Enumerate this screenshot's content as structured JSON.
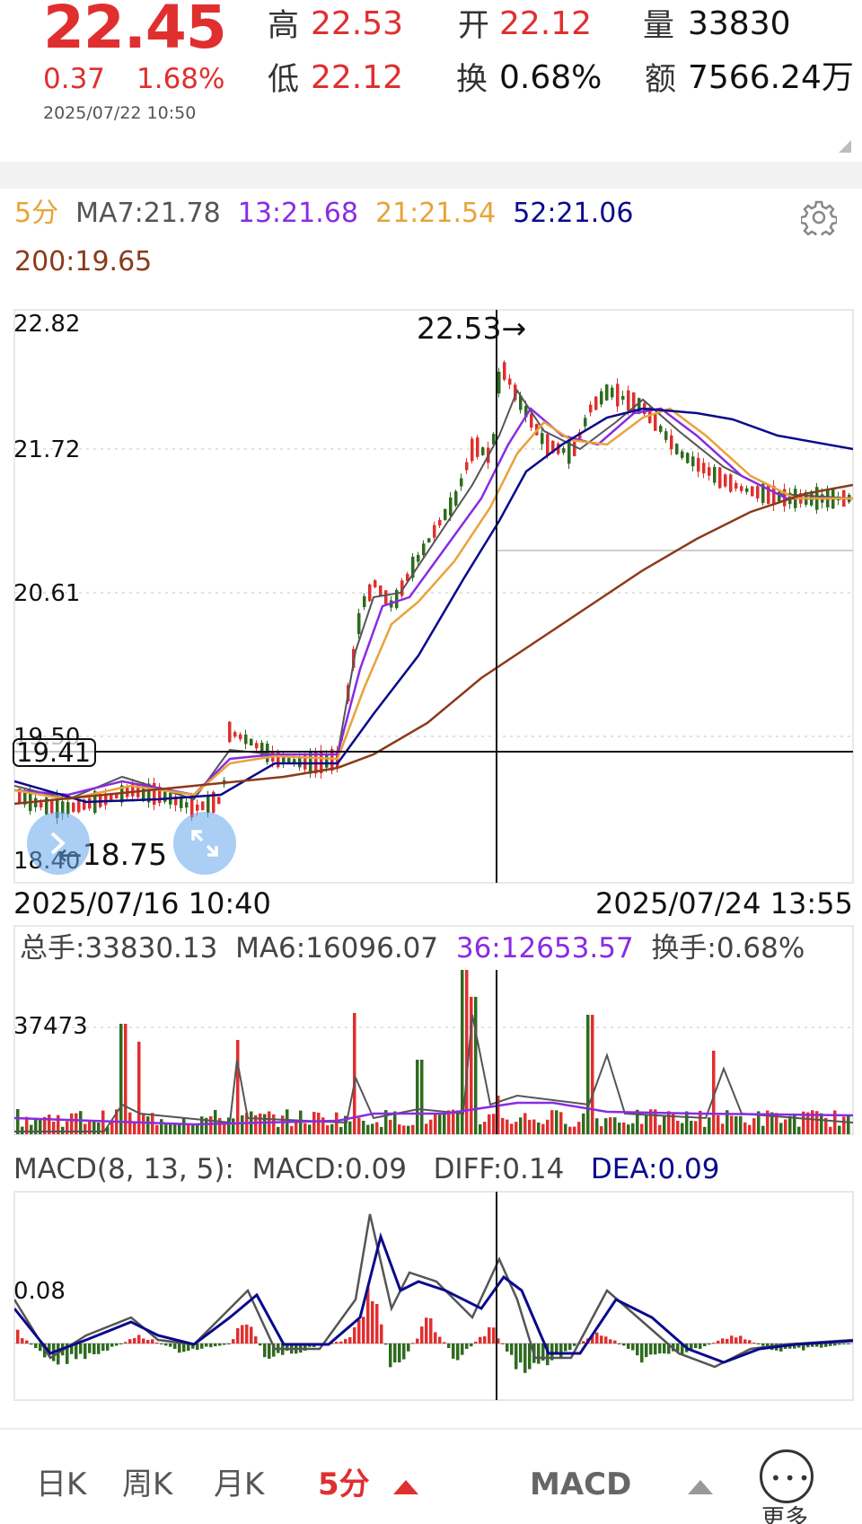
{
  "quote": {
    "price": "22.45",
    "change": "0.37",
    "change_pct": "1.68%",
    "time": "2025/07/22 10:50",
    "high_label": "高",
    "high": "22.53",
    "open_label": "开",
    "open": "22.12",
    "vol_label": "量",
    "vol": "33830",
    "low_label": "低",
    "low": "22.12",
    "turnover_label": "换",
    "turnover": "0.68%",
    "amount_label": "额",
    "amount": "7566.24万"
  },
  "ma": {
    "period": "5分",
    "ma7": "MA7:21.78",
    "ma13": "13:21.68",
    "ma21": "21:21.54",
    "ma52": "52:21.06",
    "ma200": "200:19.65"
  },
  "main_chart": {
    "y_labels": [
      "22.82",
      "21.72",
      "20.61",
      "19.50",
      "18.40"
    ],
    "high_marker": "22.53→",
    "low_marker": "←18.75",
    "cursor_price": "19.41",
    "start_date": "2025/07/16 10:40",
    "end_date": "2025/07/24 13:55"
  },
  "volume": {
    "total": "总手:33830.13",
    "ma6": "MA6:16096.07",
    "ma36": "36:12653.57",
    "turnover": "换手:0.68%",
    "y_label": "37473"
  },
  "macd": {
    "title": "MACD(8, 13, 5):",
    "macd": "MACD:0.09",
    "diff": "DIFF:0.14",
    "dea": "DEA:0.09",
    "y_label": "0.08"
  },
  "nav": {
    "day": "日K",
    "week": "周K",
    "month": "月K",
    "five_min": "5分",
    "indicator": "MACD",
    "more": "更多"
  },
  "colors": {
    "up": "#e02f2f",
    "down": "#2e6b1e",
    "ma7": "#555555",
    "ma13": "#8a2be2",
    "ma21": "#e8a33a",
    "ma52": "#0a0a8c",
    "ma200": "#8b3a1a",
    "period": "#e8a33a"
  },
  "chart_data": [
    {
      "type": "line",
      "title": "",
      "series": [
        {
          "name": "MA7",
          "values": [
            21.78
          ]
        },
        {
          "name": "13",
          "values": [
            21.68
          ]
        },
        {
          "name": "21",
          "values": [
            21.54
          ]
        },
        {
          "name": "52",
          "values": [
            21.06
          ]
        },
        {
          "name": "200",
          "values": [
            19.65
          ]
        }
      ],
      "ylim": [
        18.4,
        22.82
      ],
      "xlim": [
        "2025/07/16 10:40",
        "2025/07/24 13:55"
      ],
      "grid": true
    },
    {
      "type": "bar",
      "title": "",
      "values": [
        33830.13
      ],
      "series": [
        {
          "name": "MA6",
          "values": [
            16096.07
          ]
        },
        {
          "name": "36",
          "values": [
            12653.57
          ]
        }
      ]
    },
    {
      "type": "bar",
      "title": "MACD(8, 13, 5)",
      "series": [
        {
          "name": "MACD",
          "values": [
            0.09
          ]
        },
        {
          "name": "DIFF",
          "values": [
            0.14
          ]
        },
        {
          "name": "DEA",
          "values": [
            0.09
          ]
        }
      ]
    }
  ]
}
